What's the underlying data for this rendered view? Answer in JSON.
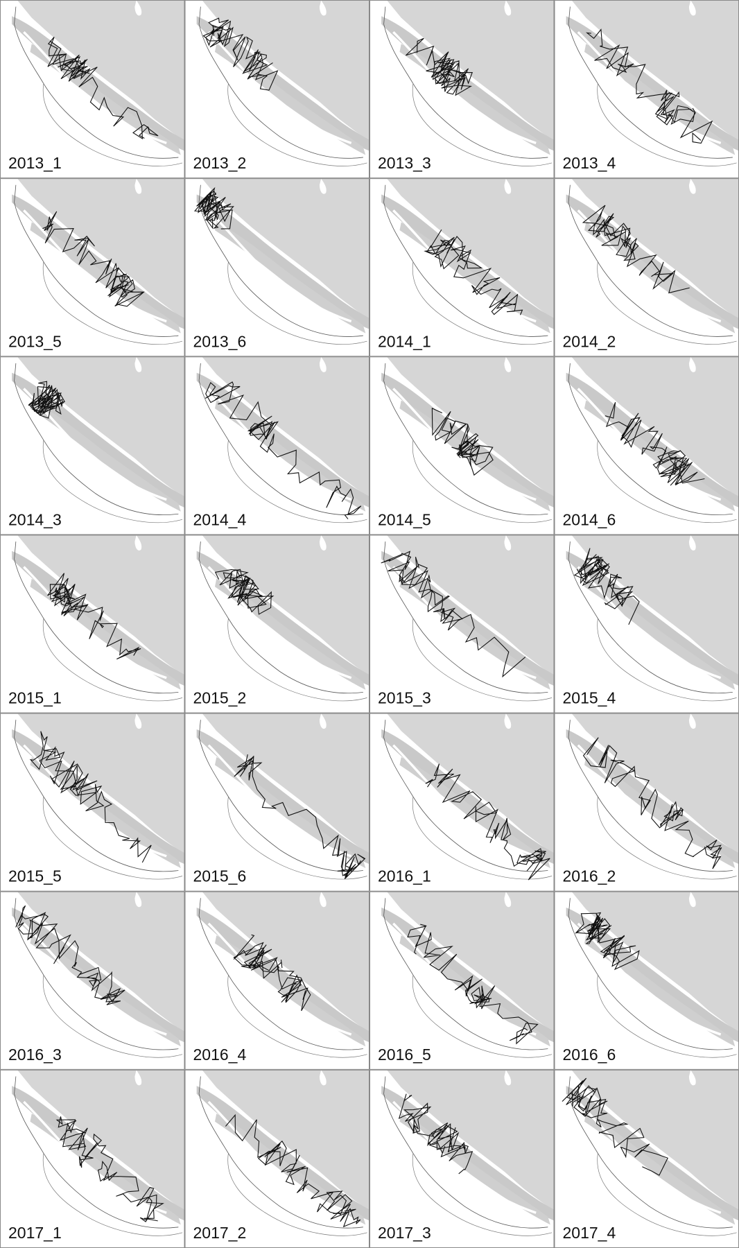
{
  "panels": [
    {
      "label": "2013_1"
    },
    {
      "label": "2013_2"
    },
    {
      "label": "2013_3"
    },
    {
      "label": "2013_4"
    },
    {
      "label": "2013_5"
    },
    {
      "label": "2013_6"
    },
    {
      "label": "2014_1"
    },
    {
      "label": "2014_2"
    },
    {
      "label": "2014_3"
    },
    {
      "label": "2014_4"
    },
    {
      "label": "2014_5"
    },
    {
      "label": "2014_6"
    },
    {
      "label": "2015_1"
    },
    {
      "label": "2015_2"
    },
    {
      "label": "2015_3"
    },
    {
      "label": "2015_4"
    },
    {
      "label": "2015_5"
    },
    {
      "label": "2015_6"
    },
    {
      "label": "2016_1"
    },
    {
      "label": "2016_2"
    },
    {
      "label": "2016_3"
    },
    {
      "label": "2016_4"
    },
    {
      "label": "2016_5"
    },
    {
      "label": "2016_6"
    },
    {
      "label": "2017_1"
    },
    {
      "label": "2017_2"
    },
    {
      "label": "2017_3"
    },
    {
      "label": "2017_4"
    }
  ]
}
